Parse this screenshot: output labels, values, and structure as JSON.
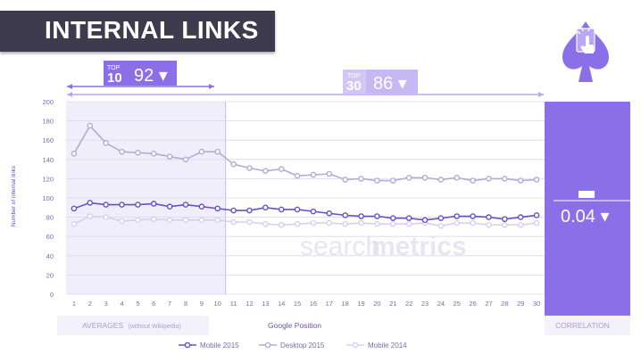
{
  "page": {
    "title": "INTERNAL LINKS",
    "footer": {
      "averages_label": "AVERAGES",
      "averages_note": "(without Wikipedia)",
      "correlation_label": "CORRELATION"
    },
    "top10_box": {
      "top": "TOP",
      "n": "10",
      "value": "92 ▾"
    },
    "top30_box": {
      "top": "TOP",
      "n": "30",
      "value": "86 ▾"
    },
    "correlation_value": "0.04 ▾",
    "watermark": {
      "part1": "search",
      "part2": "metrics"
    },
    "logo_icon": "spade-with-hand-cursor-icon",
    "colors": {
      "banner": "#3e3b4e",
      "accent": "#8b6fe8",
      "mobile2015": "#6a4fc8",
      "desktop2015": "#b4aad8",
      "mobile2014": "#d6d0ec"
    }
  },
  "chart_data": {
    "type": "line",
    "title": "",
    "xlabel": "Google Position",
    "ylabel": "Number of internal links",
    "x": [
      1,
      2,
      3,
      4,
      5,
      6,
      7,
      8,
      9,
      10,
      11,
      12,
      13,
      14,
      15,
      16,
      17,
      18,
      19,
      20,
      21,
      22,
      23,
      24,
      25,
      26,
      27,
      28,
      29,
      30
    ],
    "ylim": [
      0,
      200
    ],
    "yticks": [
      0,
      20,
      40,
      60,
      80,
      100,
      120,
      140,
      160,
      180,
      200
    ],
    "grid": true,
    "legend_position": "bottom",
    "series": [
      {
        "name": "Mobile 2015",
        "values": [
          89,
          95,
          93,
          93,
          93,
          94,
          91,
          93,
          91,
          89,
          87,
          87,
          90,
          88,
          88,
          86,
          84,
          82,
          81,
          81,
          79,
          79,
          77,
          79,
          81,
          81,
          80,
          78,
          80,
          82
        ]
      },
      {
        "name": "Desktop 2015",
        "values": [
          146,
          175,
          157,
          148,
          147,
          146,
          143,
          140,
          148,
          148,
          135,
          131,
          128,
          130,
          123,
          124,
          125,
          119,
          120,
          118,
          118,
          121,
          121,
          119,
          121,
          118,
          120,
          120,
          118,
          119
        ]
      },
      {
        "name": "Mobile 2014",
        "values": [
          73,
          81,
          80,
          76,
          77,
          78,
          77,
          77,
          77,
          77,
          75,
          75,
          73,
          72,
          73,
          74,
          74,
          73,
          74,
          73,
          73,
          73,
          74,
          71,
          74,
          74,
          72,
          72,
          72,
          74
        ]
      }
    ]
  }
}
